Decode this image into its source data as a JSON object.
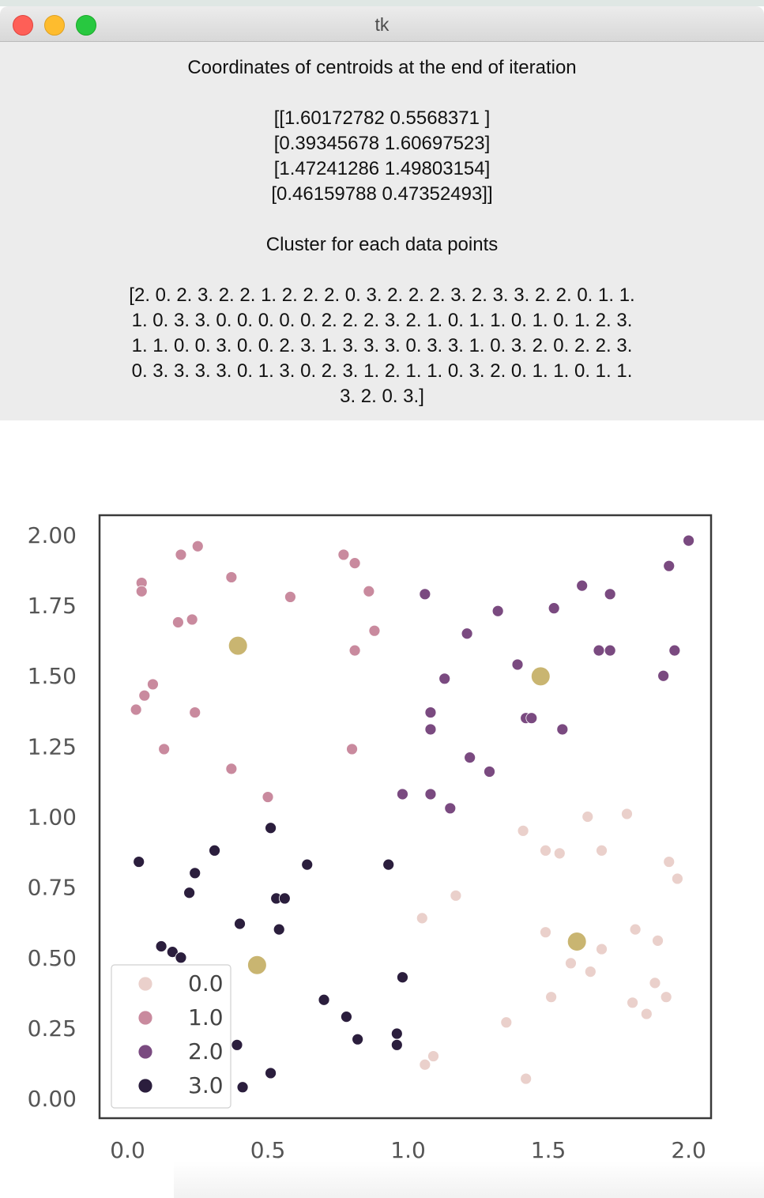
{
  "window": {
    "title": "tk"
  },
  "panel": {
    "heading": "Coordinates of centroids at the end of iteration",
    "centroid_lines": [
      "[[1.60172782 0.5568371 ]",
      "[0.39345678 1.60697523]",
      "[1.47241286 1.49803154]",
      "[0.46159788 0.47352493]]"
    ],
    "cluster_heading": "Cluster for each data points",
    "cluster_lines": [
      "[2. 0. 2. 3. 2. 2. 1. 2. 2. 2. 0. 3. 2. 2. 2. 3. 2. 3. 3. 2. 2. 0. 1. 1.",
      "1. 0. 3. 3. 0. 0. 0. 0. 0. 2. 2. 2. 3. 2. 1. 0. 1. 1. 0. 1. 0. 1. 2. 3.",
      "1. 1. 0. 0. 3. 0. 0. 2. 3. 1. 3. 3. 3. 0. 3. 3. 1. 0. 3. 2. 0. 2. 2. 3.",
      "0. 3. 3. 3. 3. 0. 1. 3. 0. 2. 3. 1. 2. 1. 1. 0. 3. 2. 0. 1. 1. 0. 1. 1.",
      "3. 2. 0. 3.]"
    ]
  },
  "chart_data": {
    "type": "scatter",
    "xlim": [
      -0.1,
      2.08
    ],
    "ylim": [
      -0.07,
      2.07
    ],
    "x_ticks": [
      "0.0",
      "0.5",
      "1.0",
      "1.5",
      "2.0"
    ],
    "y_ticks": [
      "0.00",
      "0.25",
      "0.50",
      "0.75",
      "1.00",
      "1.25",
      "1.50",
      "1.75",
      "2.00"
    ],
    "grid": false,
    "legend": {
      "placement": "lower-left",
      "entries": [
        "0.0",
        "1.0",
        "2.0",
        "3.0"
      ]
    },
    "colors": {
      "0.0": "#ead0cb",
      "1.0": "#c98a9e",
      "2.0": "#7a4a80",
      "3.0": "#2b1e3d",
      "centroid": "#c9b571",
      "frame": "#3a3a3a",
      "tick_text": "#555555"
    },
    "series": [
      {
        "name": "0.0",
        "points": [
          [
            1.05,
            0.64
          ],
          [
            1.17,
            0.72
          ],
          [
            1.41,
            0.95
          ],
          [
            1.49,
            0.88
          ],
          [
            1.54,
            0.87
          ],
          [
            1.64,
            1.0
          ],
          [
            1.78,
            1.01
          ],
          [
            1.69,
            0.88
          ],
          [
            1.93,
            0.84
          ],
          [
            1.96,
            0.78
          ],
          [
            1.49,
            0.59
          ],
          [
            1.51,
            0.36
          ],
          [
            1.58,
            0.48
          ],
          [
            1.65,
            0.45
          ],
          [
            1.69,
            0.53
          ],
          [
            1.81,
            0.6
          ],
          [
            1.89,
            0.56
          ],
          [
            1.8,
            0.34
          ],
          [
            1.88,
            0.41
          ],
          [
            1.92,
            0.36
          ],
          [
            1.85,
            0.3
          ],
          [
            1.35,
            0.27
          ],
          [
            1.09,
            0.15
          ],
          [
            1.06,
            0.12
          ],
          [
            1.42,
            0.07
          ]
        ]
      },
      {
        "name": "1.0",
        "points": [
          [
            0.05,
            1.83
          ],
          [
            0.05,
            1.8
          ],
          [
            0.19,
            1.93
          ],
          [
            0.25,
            1.96
          ],
          [
            0.37,
            1.85
          ],
          [
            0.18,
            1.69
          ],
          [
            0.23,
            1.7
          ],
          [
            0.58,
            1.78
          ],
          [
            0.77,
            1.93
          ],
          [
            0.81,
            1.9
          ],
          [
            0.86,
            1.8
          ],
          [
            0.88,
            1.66
          ],
          [
            0.81,
            1.59
          ],
          [
            0.09,
            1.47
          ],
          [
            0.06,
            1.43
          ],
          [
            0.03,
            1.38
          ],
          [
            0.24,
            1.37
          ],
          [
            0.13,
            1.24
          ],
          [
            0.37,
            1.17
          ],
          [
            0.8,
            1.24
          ],
          [
            0.5,
            1.07
          ]
        ]
      },
      {
        "name": "2.0",
        "points": [
          [
            1.06,
            1.79
          ],
          [
            1.32,
            1.73
          ],
          [
            1.21,
            1.65
          ],
          [
            1.52,
            1.74
          ],
          [
            1.62,
            1.82
          ],
          [
            1.72,
            1.79
          ],
          [
            1.93,
            1.89
          ],
          [
            2.0,
            1.98
          ],
          [
            1.95,
            1.59
          ],
          [
            1.72,
            1.59
          ],
          [
            1.68,
            1.59
          ],
          [
            1.91,
            1.5
          ],
          [
            1.39,
            1.54
          ],
          [
            1.13,
            1.49
          ],
          [
            1.08,
            1.37
          ],
          [
            1.42,
            1.35
          ],
          [
            1.44,
            1.35
          ],
          [
            1.08,
            1.31
          ],
          [
            1.55,
            1.31
          ],
          [
            1.22,
            1.21
          ],
          [
            1.29,
            1.16
          ],
          [
            0.98,
            1.08
          ],
          [
            1.08,
            1.08
          ],
          [
            1.15,
            1.03
          ]
        ]
      },
      {
        "name": "3.0",
        "points": [
          [
            0.04,
            0.84
          ],
          [
            0.31,
            0.88
          ],
          [
            0.24,
            0.8
          ],
          [
            0.22,
            0.73
          ],
          [
            0.51,
            0.96
          ],
          [
            0.64,
            0.83
          ],
          [
            0.93,
            0.83
          ],
          [
            0.53,
            0.71
          ],
          [
            0.56,
            0.71
          ],
          [
            0.4,
            0.62
          ],
          [
            0.54,
            0.6
          ],
          [
            0.12,
            0.54
          ],
          [
            0.16,
            0.52
          ],
          [
            0.19,
            0.5
          ],
          [
            0.98,
            0.43
          ],
          [
            0.7,
            0.35
          ],
          [
            0.78,
            0.29
          ],
          [
            0.82,
            0.21
          ],
          [
            0.96,
            0.23
          ],
          [
            0.96,
            0.19
          ],
          [
            0.39,
            0.19
          ],
          [
            0.51,
            0.09
          ],
          [
            0.41,
            0.04
          ]
        ]
      }
    ],
    "centroids": [
      [
        1.60172782,
        0.5568371
      ],
      [
        0.39345678,
        1.60697523
      ],
      [
        1.47241286,
        1.49803154
      ],
      [
        0.46159788,
        0.47352493
      ]
    ]
  }
}
